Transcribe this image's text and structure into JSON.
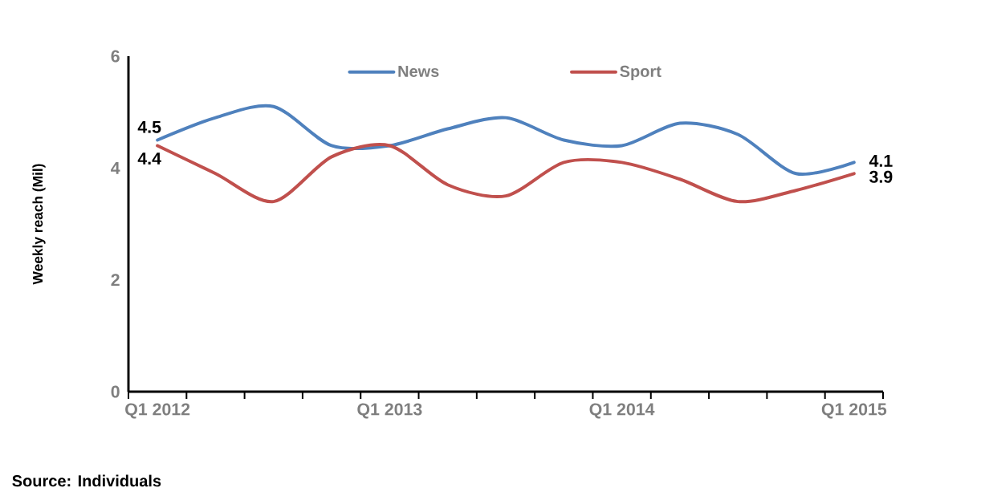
{
  "chart_data": {
    "type": "line",
    "ylabel": "Weekly reach (Mil)",
    "categories": [
      "Q1 2012",
      null,
      null,
      null,
      "Q1 2013",
      null,
      null,
      null,
      "Q1 2014",
      null,
      null,
      null,
      "Q1 2015"
    ],
    "series": [
      {
        "name": "News",
        "color": "#4f81bd",
        "values": [
          4.5,
          4.9,
          5.1,
          4.4,
          4.4,
          4.7,
          4.9,
          4.5,
          4.4,
          4.8,
          4.6,
          3.9,
          4.1
        ],
        "value_labels": [
          "4.5",
          null,
          null,
          null,
          null,
          null,
          null,
          null,
          null,
          null,
          null,
          null,
          "4.1"
        ]
      },
      {
        "name": "Sport",
        "color": "#c0504d",
        "values": [
          4.4,
          3.9,
          3.4,
          4.2,
          4.4,
          3.7,
          3.5,
          4.1,
          4.1,
          3.8,
          3.4,
          3.6,
          3.9
        ],
        "value_labels": [
          "4.4",
          null,
          null,
          null,
          null,
          null,
          null,
          null,
          null,
          null,
          null,
          null,
          "3.9"
        ]
      }
    ],
    "ylim": [
      0,
      6
    ],
    "yticks": [
      0,
      2,
      4,
      6
    ],
    "legend": "top",
    "annotations": [
      "Source: Individuals"
    ]
  }
}
